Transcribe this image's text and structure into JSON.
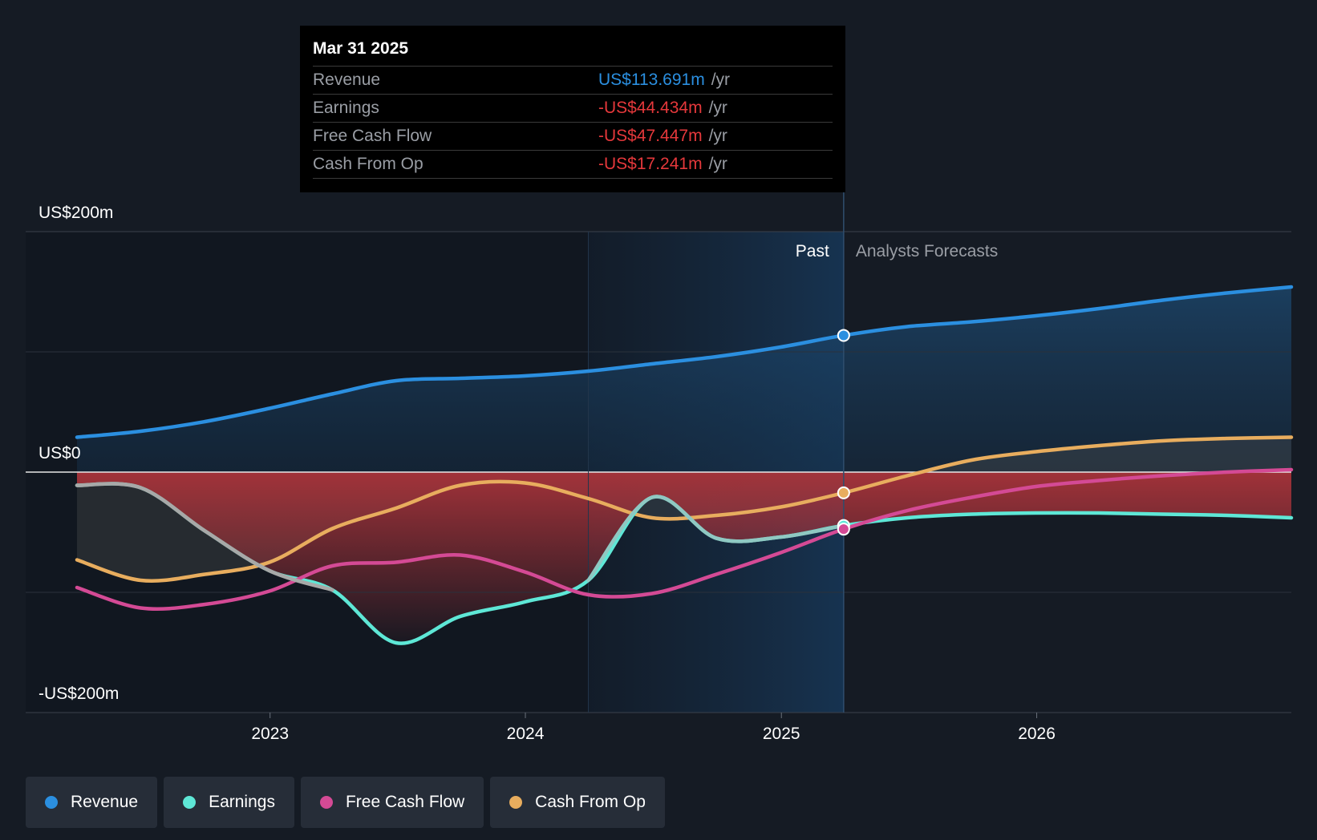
{
  "chart_data": {
    "type": "area",
    "y_labels": {
      "top": "US$200m",
      "zero": "US$0",
      "bottom": "-US$200m"
    },
    "ylim": [
      -200,
      200
    ],
    "x_ticks": [
      "2023",
      "2024",
      "2025",
      "2026"
    ],
    "region_labels": {
      "past": "Past",
      "forecast": "Analysts Forecasts"
    },
    "past_cutoff": "2025-03-31",
    "series": [
      {
        "name": "Revenue",
        "color": "#2b8fe0",
        "points": [
          [
            "2022-03-31",
            29
          ],
          [
            "2022-06-30",
            34
          ],
          [
            "2022-09-30",
            42
          ],
          [
            "2022-12-31",
            53
          ],
          [
            "2023-03-31",
            65
          ],
          [
            "2023-06-30",
            76
          ],
          [
            "2023-09-30",
            78
          ],
          [
            "2023-12-31",
            80
          ],
          [
            "2024-03-31",
            84
          ],
          [
            "2024-06-30",
            90
          ],
          [
            "2024-09-30",
            96
          ],
          [
            "2024-12-31",
            104
          ],
          [
            "2025-03-31",
            113.691
          ],
          [
            "2025-06-30",
            121
          ],
          [
            "2025-09-30",
            125
          ],
          [
            "2025-12-31",
            130
          ],
          [
            "2026-03-31",
            136
          ],
          [
            "2026-06-30",
            143
          ],
          [
            "2026-09-30",
            149
          ],
          [
            "2026-12-31",
            154
          ]
        ]
      },
      {
        "name": "Earnings",
        "color": "#5ee7d6",
        "points": [
          [
            "2022-03-31",
            -11
          ],
          [
            "2022-06-30",
            -13
          ],
          [
            "2022-09-30",
            -49
          ],
          [
            "2022-12-31",
            -82
          ],
          [
            "2023-03-31",
            -98
          ],
          [
            "2023-06-30",
            -142
          ],
          [
            "2023-09-30",
            -120
          ],
          [
            "2023-12-31",
            -108
          ],
          [
            "2024-03-31",
            -90
          ],
          [
            "2024-06-30",
            -21
          ],
          [
            "2024-09-30",
            -55
          ],
          [
            "2024-12-31",
            -54
          ],
          [
            "2025-03-31",
            -44.434
          ],
          [
            "2025-06-30",
            -38
          ],
          [
            "2025-09-30",
            -35
          ],
          [
            "2025-12-31",
            -34
          ],
          [
            "2026-03-31",
            -34
          ],
          [
            "2026-06-30",
            -35
          ],
          [
            "2026-09-30",
            -36
          ],
          [
            "2026-12-31",
            -38
          ]
        ]
      },
      {
        "name": "Free Cash Flow",
        "color": "#d44a95",
        "points": [
          [
            "2022-03-31",
            -96
          ],
          [
            "2022-06-30",
            -113
          ],
          [
            "2022-09-30",
            -110
          ],
          [
            "2022-12-31",
            -99
          ],
          [
            "2023-03-31",
            -78
          ],
          [
            "2023-06-30",
            -75
          ],
          [
            "2023-09-30",
            -69
          ],
          [
            "2023-12-31",
            -83
          ],
          [
            "2024-03-31",
            -102
          ],
          [
            "2024-06-30",
            -101
          ],
          [
            "2024-09-30",
            -85
          ],
          [
            "2024-12-31",
            -67
          ],
          [
            "2025-03-31",
            -47.447
          ],
          [
            "2025-06-30",
            -32
          ],
          [
            "2025-09-30",
            -21
          ],
          [
            "2025-12-31",
            -12
          ],
          [
            "2026-03-31",
            -7
          ],
          [
            "2026-06-30",
            -3
          ],
          [
            "2026-09-30",
            0
          ],
          [
            "2026-12-31",
            2
          ]
        ]
      },
      {
        "name": "Cash From Op",
        "color": "#e8ad5e",
        "points": [
          [
            "2022-03-31",
            -73
          ],
          [
            "2022-06-30",
            -90
          ],
          [
            "2022-09-30",
            -85
          ],
          [
            "2022-12-31",
            -75
          ],
          [
            "2023-03-31",
            -47
          ],
          [
            "2023-06-30",
            -30
          ],
          [
            "2023-09-30",
            -11
          ],
          [
            "2023-12-31",
            -9
          ],
          [
            "2024-03-31",
            -22
          ],
          [
            "2024-06-30",
            -38
          ],
          [
            "2024-09-30",
            -36
          ],
          [
            "2024-12-31",
            -29
          ],
          [
            "2025-03-31",
            -17.241
          ],
          [
            "2025-06-30",
            -3
          ],
          [
            "2025-09-30",
            10
          ],
          [
            "2025-12-31",
            17
          ],
          [
            "2026-03-31",
            22
          ],
          [
            "2026-06-30",
            26
          ],
          [
            "2026-09-30",
            28
          ],
          [
            "2026-12-31",
            29
          ]
        ]
      }
    ]
  },
  "tooltip": {
    "date": "Mar 31 2025",
    "rows": [
      {
        "label": "Revenue",
        "value": "US$113.691m",
        "unit": "/yr",
        "color": "#2b8fe0"
      },
      {
        "label": "Earnings",
        "value": "-US$44.434m",
        "unit": "/yr",
        "color": "#e5383b"
      },
      {
        "label": "Free Cash Flow",
        "value": "-US$47.447m",
        "unit": "/yr",
        "color": "#e5383b"
      },
      {
        "label": "Cash From Op",
        "value": "-US$17.241m",
        "unit": "/yr",
        "color": "#e5383b"
      }
    ]
  },
  "legend": [
    {
      "label": "Revenue",
      "color": "#2b8fe0"
    },
    {
      "label": "Earnings",
      "color": "#5ee7d6"
    },
    {
      "label": "Free Cash Flow",
      "color": "#d44a95"
    },
    {
      "label": "Cash From Op",
      "color": "#e8ad5e"
    }
  ]
}
